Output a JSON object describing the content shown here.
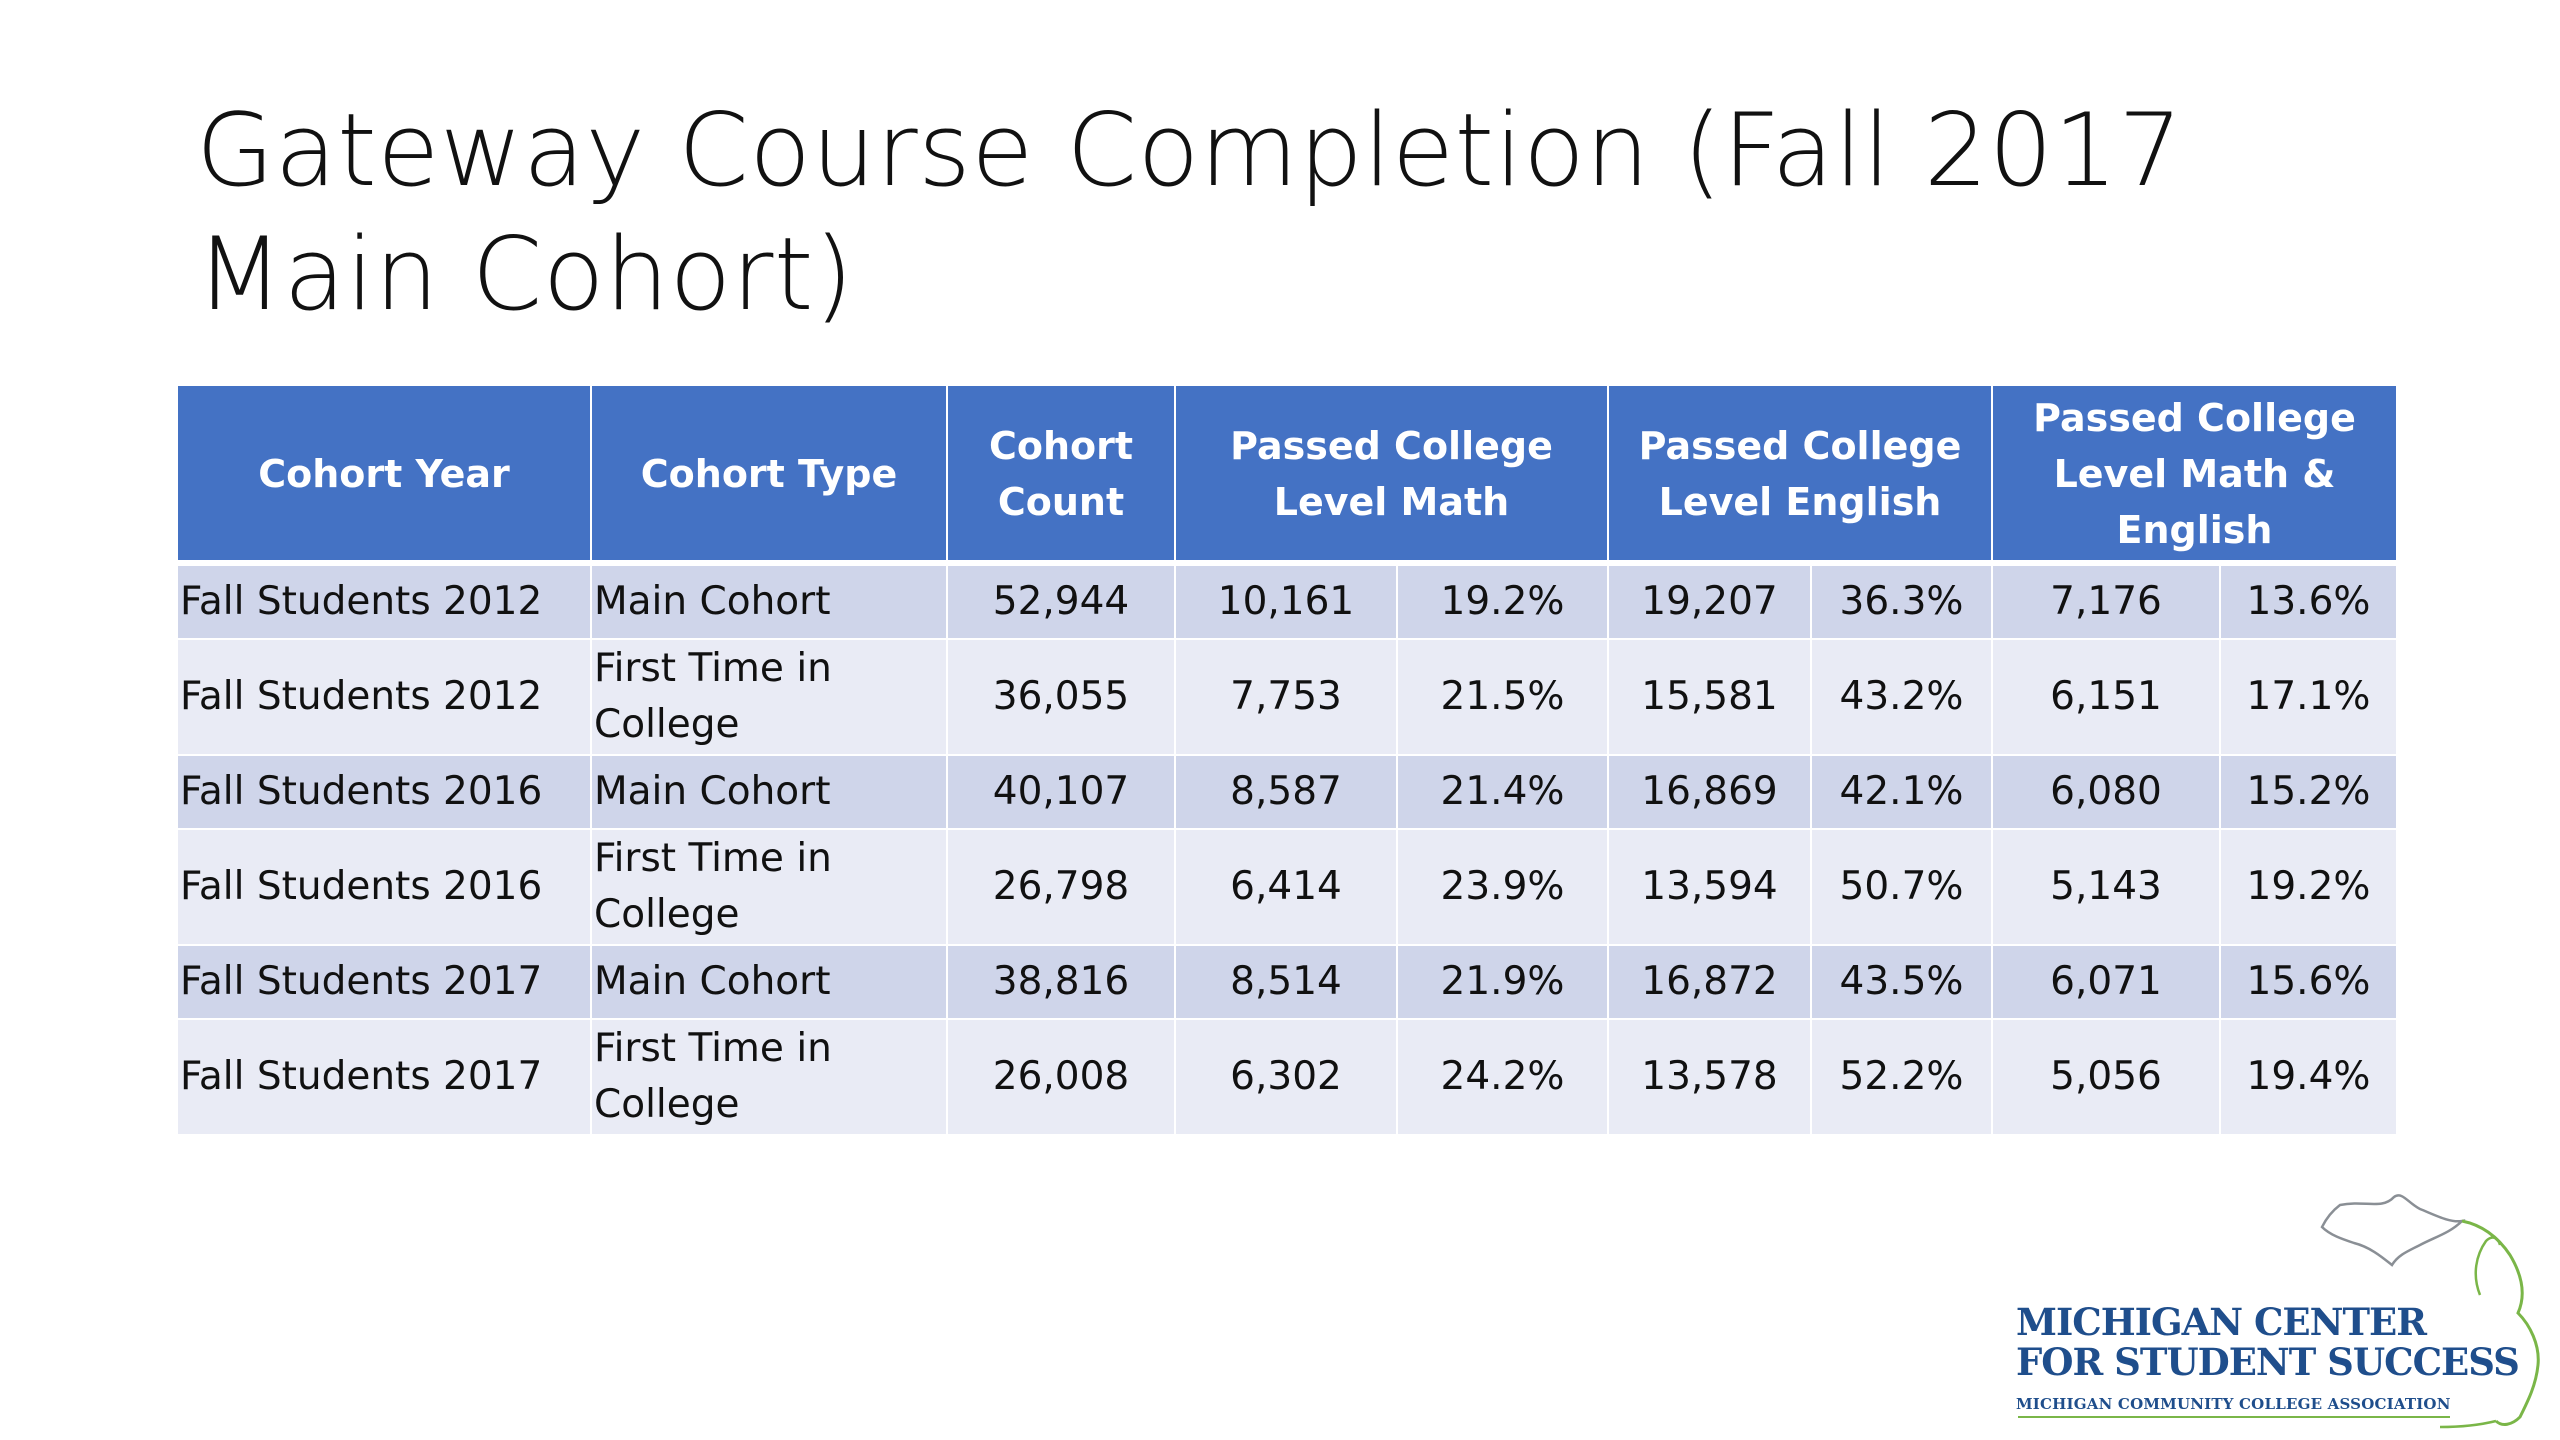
{
  "slide": {
    "title": "Gateway Course Completion (Fall 2017 Main Cohort)"
  },
  "table": {
    "headers": [
      "Cohort Year",
      "Cohort Type",
      "Cohort Count",
      "Passed College Level Math",
      "Passed College Level English",
      "Passed College Level Math & English"
    ],
    "rows": [
      {
        "year": "Fall Students 2012",
        "type": "Main Cohort",
        "count": "52,944",
        "math_n": "10,161",
        "math_pct": "19.2%",
        "eng_n": "19,207",
        "eng_pct": "36.3%",
        "both_n": "7,176",
        "both_pct": "13.6%"
      },
      {
        "year": "Fall Students 2012",
        "type": "First Time in College",
        "count": "36,055",
        "math_n": "7,753",
        "math_pct": "21.5%",
        "eng_n": "15,581",
        "eng_pct": "43.2%",
        "both_n": "6,151",
        "both_pct": "17.1%"
      },
      {
        "year": "Fall Students 2016",
        "type": "Main Cohort",
        "count": "40,107",
        "math_n": "8,587",
        "math_pct": "21.4%",
        "eng_n": "16,869",
        "eng_pct": "42.1%",
        "both_n": "6,080",
        "both_pct": "15.2%"
      },
      {
        "year": "Fall Students 2016",
        "type": "First Time in College",
        "count": "26,798",
        "math_n": "6,414",
        "math_pct": "23.9%",
        "eng_n": "13,594",
        "eng_pct": "50.7%",
        "both_n": "5,143",
        "both_pct": "19.2%"
      },
      {
        "year": "Fall Students 2017",
        "type": "Main Cohort",
        "count": "38,816",
        "math_n": "8,514",
        "math_pct": "21.9%",
        "eng_n": "16,872",
        "eng_pct": "43.5%",
        "both_n": "6,071",
        "both_pct": "15.6%"
      },
      {
        "year": "Fall Students 2017",
        "type": "First Time in College",
        "count": "26,008",
        "math_n": "6,302",
        "math_pct": "24.2%",
        "eng_n": "13,578",
        "eng_pct": "52.2%",
        "both_n": "5,056",
        "both_pct": "19.4%"
      }
    ]
  },
  "logo": {
    "line1": "MICHIGAN CENTER",
    "line2": "FOR STUDENT SUCCESS",
    "line3": "MICHIGAN COMMUNITY COLLEGE ASSOCIATION"
  },
  "colors": {
    "header_bg": "#4472c4",
    "row_dark": "#cfd5ea",
    "row_light": "#e9ebf5",
    "logo_blue": "#1f4e8c",
    "logo_green": "#7ab648"
  }
}
